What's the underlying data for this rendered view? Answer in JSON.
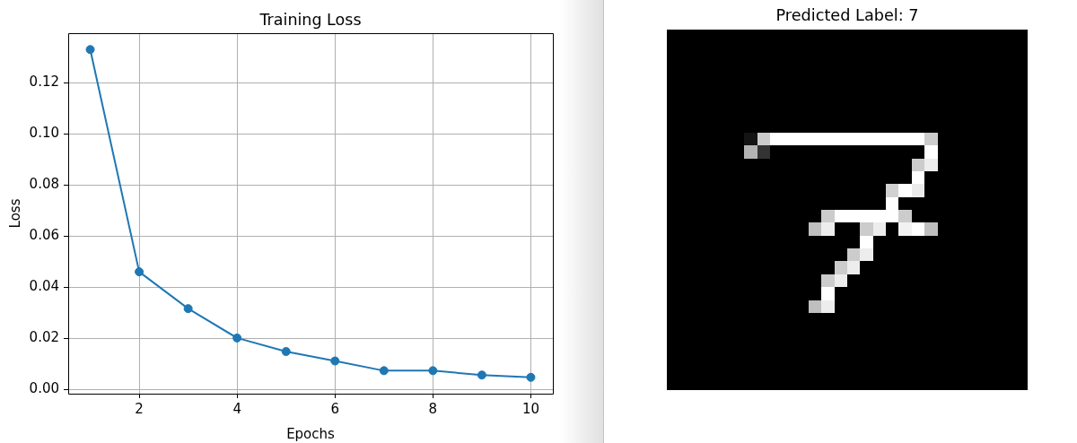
{
  "chart_data": [
    {
      "type": "line",
      "title": "Training Loss",
      "xlabel": "Epochs",
      "ylabel": "Loss",
      "x": [
        1,
        2,
        3,
        4,
        5,
        6,
        7,
        8,
        9,
        10
      ],
      "series": [
        {
          "color": "#1f77b4",
          "values": [
            0.133,
            0.046,
            0.0316,
            0.0201,
            0.0148,
            0.0111,
            0.0073,
            0.0073,
            0.0056,
            0.0047
          ]
        }
      ],
      "xlim": [
        0.55,
        10.45
      ],
      "xticks": [
        2,
        4,
        6,
        8,
        10
      ],
      "ylim": [
        -0.0017,
        0.1394
      ],
      "yticks": [
        {
          "value": 0,
          "label": "0.00"
        },
        0.02,
        0.04,
        0.06,
        0.08,
        {
          "value": 0.1,
          "label": "0.10"
        },
        0.12
      ],
      "grid": true,
      "marker": "circle",
      "line_style": "solid"
    },
    {
      "type": "other",
      "title": "Predicted Label: 7"
    }
  ]
}
